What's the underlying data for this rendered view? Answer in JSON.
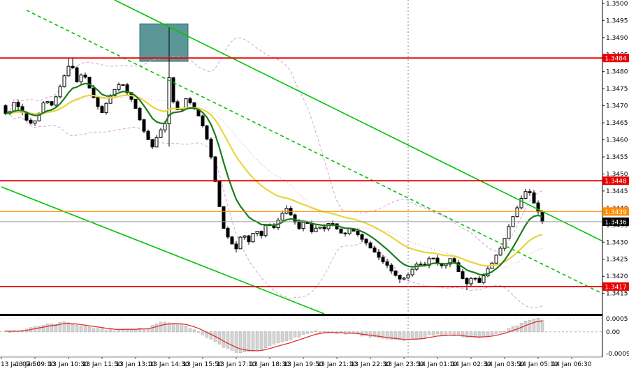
{
  "colors": {
    "background": "#ffffff",
    "candle": "#000000",
    "ma_fast": "#1a7d1a",
    "ma_slow": "#e8d63c",
    "bollinger": "#d8a0d8",
    "trend": "#00c400",
    "resistance": "#e80000",
    "target": "#ff8c00",
    "current_badge": "#000000",
    "histogram": "#d4d4d4",
    "histogram_border": "#ababab",
    "signal": "#e03030",
    "axis_text": "#000000"
  },
  "chart_data": {
    "type": "candlestick",
    "x_axis": {
      "labels": [
        "13 Jan 07:50",
        "13 Jan 09:10",
        "13 Jan 10:30",
        "13 Jan 11:50",
        "13 Jan 13:10",
        "13 Jan 14:30",
        "13 Jan 15:50",
        "13 Jan 17:10",
        "13 Jan 18:30",
        "13 Jan 19:50",
        "13 Jan 21:10",
        "13 Jan 22:30",
        "13 Jan 23:50",
        "14 Jan 01:10",
        "14 Jan 02:30",
        "14 Jan 03:50",
        "14 Jan 05:10",
        "14 Jan 06:30"
      ],
      "minutes_between_labels": 80,
      "last_candle_minute": 1290
    },
    "y_axis": {
      "min": 1.3409,
      "max": 1.3501,
      "tick_start": 1.3415,
      "tick_step": 0.0005,
      "tick_count": 18
    },
    "candle_step_minutes": 10,
    "price_path": [
      [
        0,
        1.347
      ],
      [
        15,
        1.3467
      ],
      [
        30,
        1.3471
      ],
      [
        45,
        1.3469
      ],
      [
        60,
        1.3466
      ],
      [
        75,
        1.3464
      ],
      [
        90,
        1.3468
      ],
      [
        105,
        1.3472
      ],
      [
        120,
        1.347
      ],
      [
        135,
        1.3474
      ],
      [
        150,
        1.3479
      ],
      [
        165,
        1.3483
      ],
      [
        180,
        1.3477
      ],
      [
        195,
        1.348
      ],
      [
        210,
        1.3475
      ],
      [
        225,
        1.3471
      ],
      [
        240,
        1.3468
      ],
      [
        255,
        1.3472
      ],
      [
        270,
        1.3475
      ],
      [
        285,
        1.3477
      ],
      [
        300,
        1.3474
      ],
      [
        315,
        1.3471
      ],
      [
        330,
        1.3466
      ],
      [
        345,
        1.3461
      ],
      [
        360,
        1.3458
      ],
      [
        375,
        1.3462
      ],
      [
        390,
        1.3465
      ],
      [
        400,
        1.3478
      ],
      [
        410,
        1.3471
      ],
      [
        425,
        1.3468
      ],
      [
        440,
        1.3472
      ],
      [
        455,
        1.347
      ],
      [
        470,
        1.3467
      ],
      [
        485,
        1.3463
      ],
      [
        500,
        1.3455
      ],
      [
        515,
        1.3444
      ],
      [
        530,
        1.3434
      ],
      [
        545,
        1.343
      ],
      [
        560,
        1.3428
      ],
      [
        575,
        1.3433
      ],
      [
        590,
        1.343
      ],
      [
        605,
        1.3434
      ],
      [
        620,
        1.3432
      ],
      [
        635,
        1.3436
      ],
      [
        650,
        1.3434
      ],
      [
        665,
        1.3438
      ],
      [
        680,
        1.344
      ],
      [
        695,
        1.3437
      ],
      [
        710,
        1.3434
      ],
      [
        725,
        1.3437
      ],
      [
        740,
        1.3433
      ],
      [
        755,
        1.3435
      ],
      [
        770,
        1.3434
      ],
      [
        785,
        1.3436
      ],
      [
        800,
        1.3434
      ],
      [
        815,
        1.3432
      ],
      [
        830,
        1.3434
      ],
      [
        845,
        1.3433
      ],
      [
        860,
        1.3431
      ],
      [
        875,
        1.3429
      ],
      [
        890,
        1.3427
      ],
      [
        905,
        1.3425
      ],
      [
        920,
        1.3423
      ],
      [
        935,
        1.3421
      ],
      [
        950,
        1.3419
      ],
      [
        965,
        1.342
      ],
      [
        980,
        1.3422
      ],
      [
        995,
        1.3424
      ],
      [
        1010,
        1.3423
      ],
      [
        1025,
        1.3426
      ],
      [
        1040,
        1.3424
      ],
      [
        1055,
        1.3423
      ],
      [
        1070,
        1.3425
      ],
      [
        1080,
        1.3424
      ],
      [
        1095,
        1.342
      ],
      [
        1110,
        1.3418
      ],
      [
        1125,
        1.342
      ],
      [
        1140,
        1.3418
      ],
      [
        1155,
        1.3421
      ],
      [
        1170,
        1.3424
      ],
      [
        1185,
        1.3427
      ],
      [
        1200,
        1.3431
      ],
      [
        1215,
        1.3436
      ],
      [
        1230,
        1.344
      ],
      [
        1245,
        1.3444
      ],
      [
        1255,
        1.3446
      ],
      [
        1265,
        1.3443
      ],
      [
        1275,
        1.344
      ],
      [
        1285,
        1.3438
      ],
      [
        1290,
        1.3436
      ]
    ],
    "spikes": [
      {
        "t": 165,
        "high": 1.3484
      },
      {
        "t": 400,
        "high": 1.3493,
        "low": 1.3458
      },
      {
        "t": 560,
        "low": 1.3427
      },
      {
        "t": 950,
        "low": 1.3418
      },
      {
        "t": 1110,
        "low": 1.3416
      }
    ],
    "levels": [
      {
        "price": 1.3484,
        "label": "1.3484",
        "color_key": "resistance"
      },
      {
        "price": 1.3448,
        "label": "1.3448",
        "color_key": "resistance"
      },
      {
        "price": 1.3439,
        "label": "1.3439",
        "color_key": "target"
      },
      {
        "price": 1.3417,
        "label": "1.3417",
        "color_key": "resistance"
      }
    ],
    "current_price": {
      "value": 1.3436,
      "label": "1.3436"
    },
    "trend_lines": [
      {
        "name": "channel-upper-trendline",
        "points": [
          [
            270,
            1.3501
          ],
          [
            1455,
            1.3429
          ]
        ],
        "dashed": false
      },
      {
        "name": "channel-lower-trendline",
        "points": [
          [
            0,
            1.34462
          ],
          [
            770,
            1.3409
          ]
        ],
        "dashed": false
      },
      {
        "name": "channel-mid-trendline",
        "points": [
          [
            60,
            1.3498
          ],
          [
            1465,
            1.3413
          ]
        ],
        "dashed": true
      }
    ],
    "highlight_box": {
      "t1": 330,
      "t2": 445,
      "p1": 1.3483,
      "p2": 1.3494,
      "fill": "#4e8e8e",
      "stroke": "#2f6f6f"
    },
    "day_separator_minute": 970,
    "moving_averages": [
      {
        "name": "ma-yellow",
        "period": 26,
        "color_key": "ma_slow",
        "width": 2.2
      },
      {
        "name": "ma-green",
        "period": 10,
        "color_key": "ma_fast",
        "width": 2.2
      }
    ],
    "bollinger": {
      "period": 30,
      "mult": 2
    },
    "indicator": {
      "range_min": -0.00095,
      "range_max": 0.0006,
      "labels": [
        {
          "value": 0.0005,
          "text": "0.0005"
        },
        {
          "value": 0,
          "text": "0.00"
        },
        {
          "value": -0.0009,
          "text": "-0.0009"
        }
      ],
      "path": [
        [
          0,
          0
        ],
        [
          40,
          5e-05
        ],
        [
          80,
          0.0002
        ],
        [
          120,
          0.0003
        ],
        [
          150,
          0.00035
        ],
        [
          190,
          0.00025
        ],
        [
          230,
          0.0001
        ],
        [
          270,
          5e-05
        ],
        [
          310,
          0.0001
        ],
        [
          350,
          0.00015
        ],
        [
          390,
          0.0004
        ],
        [
          420,
          0.0003
        ],
        [
          450,
          0.00015
        ],
        [
          480,
          -0.0001
        ],
        [
          510,
          -0.0004
        ],
        [
          540,
          -0.00065
        ],
        [
          570,
          -0.0008
        ],
        [
          600,
          -0.00075
        ],
        [
          630,
          -0.0006
        ],
        [
          660,
          -0.00045
        ],
        [
          690,
          -0.0003
        ],
        [
          720,
          -0.0001
        ],
        [
          750,
          5e-05
        ],
        [
          780,
          0
        ],
        [
          810,
          -5e-05
        ],
        [
          840,
          -0.0001
        ],
        [
          870,
          -0.00015
        ],
        [
          900,
          -0.00025
        ],
        [
          930,
          -0.0003
        ],
        [
          960,
          -0.0003
        ],
        [
          990,
          -0.00025
        ],
        [
          1020,
          -0.00015
        ],
        [
          1050,
          -0.0001
        ],
        [
          1080,
          -0.00012
        ],
        [
          1110,
          -0.0002
        ],
        [
          1140,
          -0.00022
        ],
        [
          1170,
          -0.0001
        ],
        [
          1200,
          5e-05
        ],
        [
          1230,
          0.00025
        ],
        [
          1250,
          0.0004
        ],
        [
          1270,
          0.00052
        ],
        [
          1290,
          0.00045
        ]
      ]
    }
  }
}
